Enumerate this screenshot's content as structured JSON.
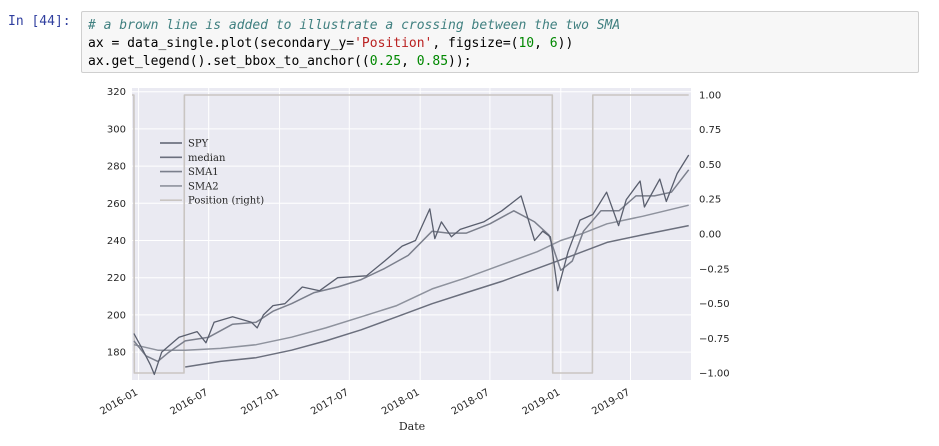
{
  "cell": {
    "prompt": "In [44]:",
    "code": {
      "line1": "# a brown line is added to illustrate a crossing between the two SMA",
      "line2_pre": "ax = data_single.plot(secondary_y=",
      "line2_str": "'Position'",
      "line2_mid": ", figsize=(",
      "line2_num1": "10",
      "line2_sep": ", ",
      "line2_num2": "6",
      "line2_post": "))",
      "line3_pre": "ax.get_legend().set_bbox_to_anchor((",
      "line3_num1": "0.25",
      "line3_sep": ", ",
      "line3_num2": "0.85",
      "line3_post": "));"
    }
  },
  "chart_data": {
    "type": "line",
    "xlabel": "Date",
    "x_ticks": [
      "2016-01",
      "2016-07",
      "2017-01",
      "2017-07",
      "2018-01",
      "2018-07",
      "2019-01",
      "2019-07"
    ],
    "y_ticks_left": [
      "320",
      "300",
      "280",
      "260",
      "240",
      "220",
      "200",
      "180"
    ],
    "y_ticks_right": [
      "1.00",
      "0.75",
      "0.50",
      "0.25",
      "0.00",
      "−0.25",
      "−0.50",
      "−0.75",
      "−1.00"
    ],
    "ylim_left": [
      165,
      322
    ],
    "ylim_right": [
      -1.05,
      1.05
    ],
    "xlim": [
      "2015-12-15",
      "2019-12-05"
    ],
    "grid": true,
    "legend_position": "upper-left",
    "legend": [
      "SPY",
      "median",
      "SMA1",
      "SMA2",
      "Position (right)"
    ],
    "series": [
      {
        "name": "SPY",
        "color": "#5a5f6e",
        "axis": "left",
        "points": [
          [
            "2015-12-20",
            190
          ],
          [
            "2016-01-10",
            182
          ],
          [
            "2016-02-01",
            173
          ],
          [
            "2016-02-11",
            168
          ],
          [
            "2016-03-01",
            180
          ],
          [
            "2016-04-15",
            188
          ],
          [
            "2016-06-01",
            191
          ],
          [
            "2016-06-24",
            185
          ],
          [
            "2016-07-15",
            196
          ],
          [
            "2016-09-01",
            199
          ],
          [
            "2016-10-20",
            196
          ],
          [
            "2016-11-04",
            193
          ],
          [
            "2016-11-20",
            200
          ],
          [
            "2016-12-15",
            205
          ],
          [
            "2017-01-15",
            206
          ],
          [
            "2017-03-01",
            215
          ],
          [
            "2017-04-15",
            213
          ],
          [
            "2017-06-01",
            220
          ],
          [
            "2017-08-15",
            221
          ],
          [
            "2017-10-01",
            229
          ],
          [
            "2017-11-15",
            237
          ],
          [
            "2017-12-20",
            240
          ],
          [
            "2018-01-26",
            257
          ],
          [
            "2018-02-08",
            241
          ],
          [
            "2018-02-25",
            250
          ],
          [
            "2018-03-23",
            242
          ],
          [
            "2018-04-15",
            246
          ],
          [
            "2018-05-15",
            248
          ],
          [
            "2018-06-15",
            250
          ],
          [
            "2018-08-01",
            256
          ],
          [
            "2018-09-20",
            264
          ],
          [
            "2018-10-25",
            240
          ],
          [
            "2018-11-15",
            245
          ],
          [
            "2018-12-05",
            242
          ],
          [
            "2018-12-24",
            213
          ],
          [
            "2019-01-20",
            234
          ],
          [
            "2019-02-20",
            251
          ],
          [
            "2019-03-25",
            254
          ],
          [
            "2019-04-30",
            266
          ],
          [
            "2019-05-31",
            248
          ],
          [
            "2019-06-20",
            262
          ],
          [
            "2019-07-26",
            272
          ],
          [
            "2019-08-06",
            258
          ],
          [
            "2019-09-15",
            273
          ],
          [
            "2019-10-02",
            261
          ],
          [
            "2019-10-30",
            276
          ],
          [
            "2019-11-29",
            286
          ]
        ]
      },
      {
        "name": "median",
        "color": "#6b6f7d",
        "axis": "left",
        "points": [
          [
            "2016-05-01",
            172
          ],
          [
            "2016-08-01",
            175
          ],
          [
            "2016-11-01",
            177
          ],
          [
            "2017-02-01",
            181
          ],
          [
            "2017-05-01",
            186
          ],
          [
            "2017-08-01",
            192
          ],
          [
            "2017-11-01",
            199
          ],
          [
            "2018-02-01",
            206
          ],
          [
            "2018-05-01",
            212
          ],
          [
            "2018-08-01",
            218
          ],
          [
            "2018-11-01",
            225
          ],
          [
            "2019-02-01",
            232
          ],
          [
            "2019-05-01",
            239
          ],
          [
            "2019-08-01",
            243
          ],
          [
            "2019-11-29",
            248
          ]
        ]
      },
      {
        "name": "SMA1",
        "color": "#7b7f8c",
        "axis": "left",
        "points": [
          [
            "2015-12-20",
            186
          ],
          [
            "2016-01-20",
            178
          ],
          [
            "2016-02-20",
            175
          ],
          [
            "2016-03-20",
            180
          ],
          [
            "2016-05-01",
            186
          ],
          [
            "2016-07-01",
            188
          ],
          [
            "2016-09-01",
            195
          ],
          [
            "2016-11-01",
            196
          ],
          [
            "2016-12-15",
            202
          ],
          [
            "2017-02-01",
            206
          ],
          [
            "2017-04-01",
            212
          ],
          [
            "2017-06-01",
            215
          ],
          [
            "2017-08-01",
            219
          ],
          [
            "2017-10-01",
            225
          ],
          [
            "2017-12-01",
            232
          ],
          [
            "2018-02-01",
            245
          ],
          [
            "2018-03-15",
            244
          ],
          [
            "2018-05-01",
            244
          ],
          [
            "2018-07-01",
            249
          ],
          [
            "2018-09-01",
            256
          ],
          [
            "2018-10-25",
            250
          ],
          [
            "2018-12-01",
            243
          ],
          [
            "2019-01-01",
            224
          ],
          [
            "2019-01-31",
            229
          ],
          [
            "2019-03-01",
            245
          ],
          [
            "2019-04-15",
            256
          ],
          [
            "2019-06-01",
            256
          ],
          [
            "2019-07-15",
            264
          ],
          [
            "2019-09-01",
            264
          ],
          [
            "2019-10-15",
            266
          ],
          [
            "2019-11-29",
            278
          ]
        ]
      },
      {
        "name": "SMA2",
        "color": "#8e929d",
        "axis": "left",
        "points": [
          [
            "2015-12-20",
            184
          ],
          [
            "2016-02-20",
            181
          ],
          [
            "2016-05-01",
            181
          ],
          [
            "2016-08-01",
            182
          ],
          [
            "2016-11-01",
            184
          ],
          [
            "2017-02-01",
            188
          ],
          [
            "2017-05-01",
            193
          ],
          [
            "2017-08-01",
            199
          ],
          [
            "2017-11-01",
            205
          ],
          [
            "2018-02-01",
            214
          ],
          [
            "2018-05-01",
            220
          ],
          [
            "2018-08-01",
            227
          ],
          [
            "2018-11-01",
            234
          ],
          [
            "2019-01-01",
            240
          ],
          [
            "2019-03-01",
            244
          ],
          [
            "2019-05-01",
            249
          ],
          [
            "2019-08-01",
            253
          ],
          [
            "2019-11-29",
            259
          ]
        ]
      },
      {
        "name": "Position (right)",
        "color": "#c9c5c2",
        "axis": "right",
        "points": [
          [
            "2015-12-15",
            1
          ],
          [
            "2015-12-20",
            1
          ],
          [
            "2015-12-21",
            -1
          ],
          [
            "2016-04-28",
            -1
          ],
          [
            "2016-04-29",
            1
          ],
          [
            "2018-12-10",
            1
          ],
          [
            "2018-12-11",
            -1
          ],
          [
            "2019-03-24",
            -1
          ],
          [
            "2019-03-25",
            1
          ],
          [
            "2019-11-29",
            1
          ]
        ]
      }
    ]
  }
}
